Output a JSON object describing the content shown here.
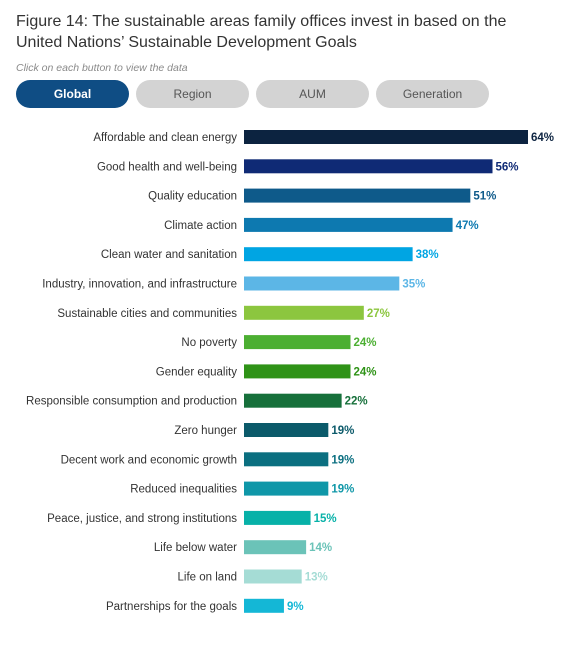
{
  "header": {
    "title": "Figure 14: The sustainable areas family offices invest in based on the United Nations’ Sustainable Development Goals",
    "hint": "Click on each button to view the data"
  },
  "buttons": [
    {
      "label": "Global",
      "active": true
    },
    {
      "label": "Region",
      "active": false
    },
    {
      "label": "AUM",
      "active": false
    },
    {
      "label": "Generation",
      "active": false
    }
  ],
  "colors": {
    "active_button": "#0f4d84",
    "inactive_button": "#d3d3d3"
  },
  "chart_data": {
    "type": "bar",
    "orientation": "horizontal",
    "title": "Figure 14: The sustainable areas family offices invest in based on the United Nations’ Sustainable Development Goals",
    "xlabel": "",
    "ylabel": "",
    "xlim": [
      0,
      64
    ],
    "grid": false,
    "legend": "none",
    "value_suffix": "%",
    "categories": [
      "Affordable and clean energy",
      "Good health and well-being",
      "Quality education",
      "Climate action",
      "Clean water and sanitation",
      "Industry, innovation, and infrastructure",
      "Sustainable cities and communities",
      "No poverty",
      "Gender equality",
      "Responsible consumption and production",
      "Zero hunger",
      "Decent work and economic growth",
      "Reduced inequalities",
      "Peace, justice, and strong institutions",
      "Life below water",
      "Life on land",
      "Partnerships for the goals"
    ],
    "values": [
      64,
      56,
      51,
      47,
      38,
      35,
      27,
      24,
      24,
      22,
      19,
      19,
      19,
      15,
      14,
      13,
      9
    ],
    "labels": [
      "64%",
      "56%",
      "51%",
      "47%",
      "38%",
      "35%",
      "27%",
      "24%",
      "24%",
      "22%",
      "19%",
      "19%",
      "19%",
      "15%",
      "14%",
      "13%",
      "9%"
    ],
    "bar_colors": [
      "#0c2340",
      "#0f2a75",
      "#0e5a8a",
      "#0d79b0",
      "#00a5e3",
      "#5cb6e6",
      "#8cc63f",
      "#4caf32",
      "#2f9317",
      "#17703b",
      "#0b5a6a",
      "#0b6f80",
      "#0f97a8",
      "#07b1a8",
      "#6bc3b8",
      "#a5dcd5",
      "#14b7d6"
    ]
  }
}
